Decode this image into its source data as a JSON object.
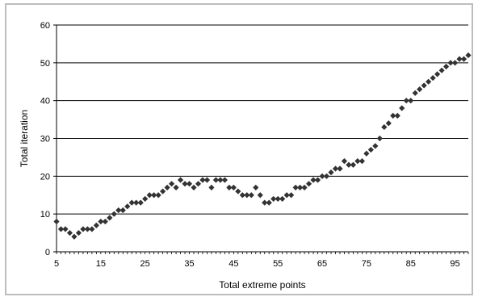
{
  "chart_data": {
    "type": "scatter",
    "title": "",
    "xlabel": "Total extreme points",
    "ylabel": "Total iteration",
    "xlim": [
      5,
      98
    ],
    "ylim": [
      0,
      60
    ],
    "x_ticks": [
      5,
      15,
      25,
      35,
      45,
      55,
      65,
      75,
      85,
      95
    ],
    "y_ticks": [
      0,
      10,
      20,
      30,
      40,
      50,
      60
    ],
    "grid": "horizontal",
    "legend": "none",
    "marker_color": "#333333",
    "series": [
      {
        "x": [
          5,
          6,
          7,
          8,
          9,
          10,
          11,
          12,
          13,
          14,
          15,
          16,
          17,
          18,
          19,
          20,
          21,
          22,
          23,
          24,
          25,
          26,
          27,
          28,
          29,
          30,
          31,
          32,
          33,
          34,
          35,
          36,
          37,
          38,
          39,
          40,
          41,
          42,
          43,
          44,
          45,
          46,
          47,
          48,
          49,
          50,
          51,
          52,
          53,
          54,
          55,
          56,
          57,
          58,
          59,
          60,
          61,
          62,
          63,
          64,
          65,
          66,
          67,
          68,
          69,
          70,
          71,
          72,
          73,
          74,
          75,
          76,
          77,
          78,
          79,
          80,
          81,
          82,
          83,
          84,
          85,
          86,
          87,
          88,
          89,
          90,
          91,
          92,
          93,
          94,
          95,
          96,
          97,
          98
        ],
        "y": [
          8,
          6,
          6,
          5,
          4,
          5,
          6,
          6,
          6,
          7,
          8,
          8,
          9,
          10,
          11,
          11,
          12,
          13,
          13,
          13,
          14,
          15,
          15,
          15,
          16,
          17,
          18,
          17,
          19,
          18,
          18,
          17,
          18,
          19,
          19,
          17,
          19,
          19,
          19,
          17,
          17,
          16,
          15,
          15,
          15,
          17,
          15,
          13,
          13,
          14,
          14,
          14,
          15,
          15,
          17,
          17,
          17,
          18,
          19,
          19,
          20,
          20,
          21,
          22,
          22,
          24,
          23,
          23,
          24,
          24,
          26,
          27,
          28,
          30,
          33,
          34,
          36,
          36,
          38,
          40,
          40,
          42,
          43,
          44,
          45,
          46,
          47,
          48,
          49,
          50,
          50,
          51,
          51,
          52
        ]
      }
    ]
  }
}
